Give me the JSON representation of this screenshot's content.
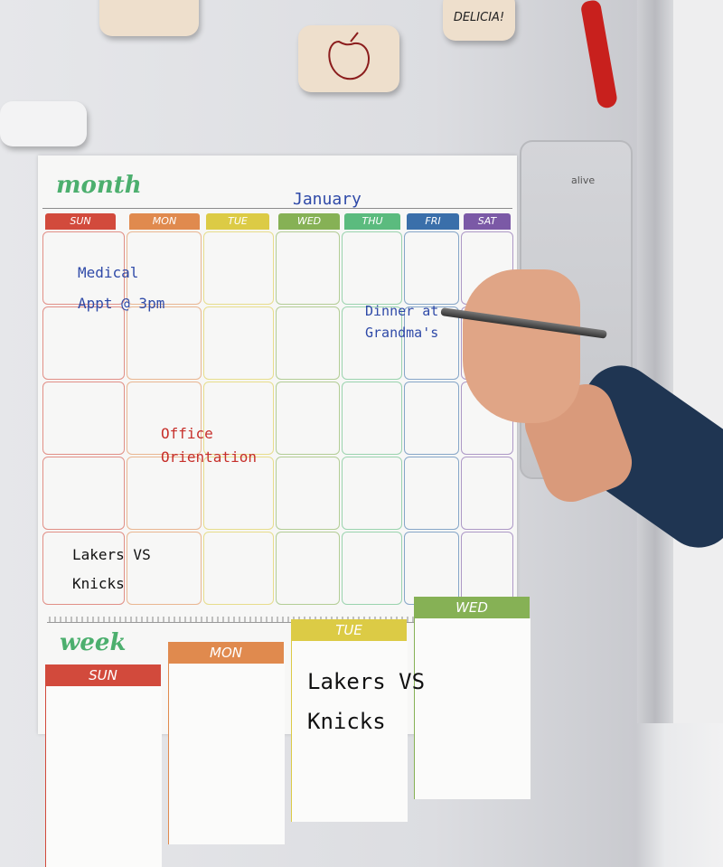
{
  "magnets": {
    "speech_bubble_text": "DELICIA!",
    "apple_icon": "apple-icon"
  },
  "panel": {
    "brand": "alive"
  },
  "month": {
    "title": "month",
    "month_name": "January",
    "days": [
      {
        "label": "SUN",
        "color": "#d24a3c"
      },
      {
        "label": "MON",
        "color": "#e08a4e"
      },
      {
        "label": "TUE",
        "color": "#dccb45"
      },
      {
        "label": "WED",
        "color": "#86b155"
      },
      {
        "label": "THU",
        "color": "#5bbb7e"
      },
      {
        "label": "FRI",
        "color": "#3a6faa"
      },
      {
        "label": "SAT",
        "color": "#7b59a6"
      }
    ],
    "notes": [
      {
        "line1": "Medical",
        "line2": "Appt @ 3pm",
        "color": "#2f4aa8"
      },
      {
        "line1": "Dinner at",
        "line2": "Grandma's",
        "color": "#2f4aa8"
      },
      {
        "line1": "Office",
        "line2": "Orientation",
        "color": "#c7302b"
      },
      {
        "line1": "Lakers VS",
        "line2": "Knicks",
        "color": "#111111"
      }
    ]
  },
  "week": {
    "title": "week",
    "days": [
      {
        "label": "SUN",
        "color": "#d24a3c"
      },
      {
        "label": "MON",
        "color": "#e08a4e"
      },
      {
        "label": "TUE",
        "color": "#dccb45"
      },
      {
        "label": "WED",
        "color": "#86b155"
      }
    ],
    "note": {
      "line1": "Lakers VS",
      "line2": "Knicks",
      "color": "#111111"
    }
  }
}
